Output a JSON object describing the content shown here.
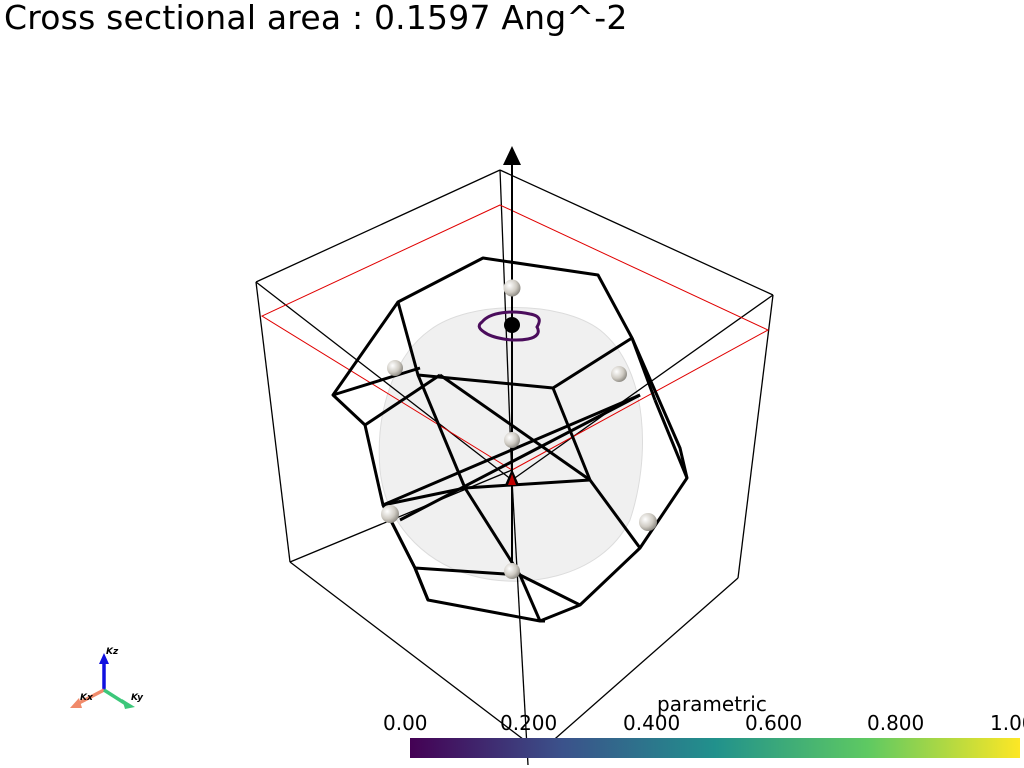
{
  "title": "Cross sectional area : 0.1597 Ang^-2",
  "colorbar": {
    "title": "parametric",
    "ticks": [
      "0.00",
      "0.200",
      "0.400",
      "0.600",
      "0.800",
      "1.00"
    ],
    "colormap": [
      "#440154",
      "#3b528b",
      "#21918c",
      "#5ec962",
      "#fde725"
    ]
  },
  "orientation_axes": {
    "x_label": "Kx",
    "y_label": "Ky",
    "z_label": "Kz",
    "x_color": "#f08a6a",
    "y_color": "#3cc77a",
    "z_color": "#1010e0"
  },
  "colors": {
    "zone_edges": "#000000",
    "slice_plane": "#e00000",
    "cross_section_contour": "#4b0d5c",
    "fermi_surface": "#e6e6e6",
    "high_symmetry_points": "#d8d4cc"
  }
}
